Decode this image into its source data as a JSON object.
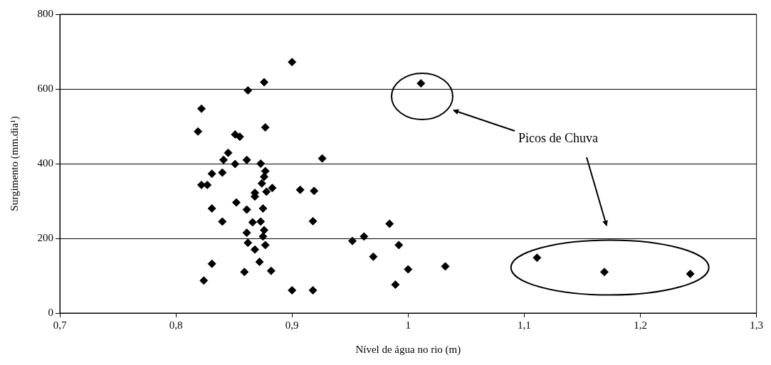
{
  "chart_data": {
    "type": "scatter",
    "xlabel": "Nível de água no rio (m)",
    "ylabel": "Surgimento (mm.dia¹)",
    "annotations": [
      "Picos de Chuva"
    ],
    "x": [
      0.9,
      0.876,
      0.862,
      1.011,
      0.822,
      0.819,
      0.877,
      0.851,
      0.855,
      0.926,
      0.845,
      0.841,
      0.861,
      0.851,
      0.873,
      0.877,
      0.876,
      0.874,
      0.822,
      0.827,
      0.831,
      0.84,
      0.883,
      0.878,
      0.868,
      0.868,
      0.907,
      0.919,
      0.831,
      0.852,
      0.861,
      0.875,
      0.918,
      0.84,
      0.866,
      0.873,
      0.876,
      0.861,
      0.875,
      0.862,
      0.877,
      0.868,
      0.872,
      0.831,
      0.859,
      0.882,
      0.824,
      0.9,
      0.918,
      0.952,
      0.962,
      0.984,
      0.97,
      0.992,
      1.0,
      1.032,
      0.989,
      1.111,
      1.169,
      1.243
    ],
    "series": [
      {
        "color": "#000000",
        "values": [
          672,
          618,
          596,
          615,
          547,
          486,
          497,
          478,
          472,
          414,
          429,
          410,
          410,
          399,
          400,
          380,
          365,
          347,
          343,
          343,
          373,
          376,
          335,
          325,
          322,
          312,
          330,
          327,
          280,
          296,
          277,
          280,
          246,
          245,
          243,
          245,
          222,
          215,
          205,
          188,
          182,
          170,
          137,
          132,
          110,
          113,
          87,
          61,
          61,
          193,
          205,
          239,
          151,
          182,
          117,
          125,
          76,
          148,
          110,
          105
        ]
      }
    ],
    "xlim": [
      0.7,
      1.3
    ],
    "xticks": [
      {
        "value": 0.7,
        "label": "0,7"
      },
      {
        "value": 0.8,
        "label": "0,8"
      },
      {
        "value": 0.9,
        "label": "0,9"
      },
      1,
      {
        "value": 1.1,
        "label": "1,1"
      },
      {
        "value": 1.2,
        "label": "1,2"
      },
      {
        "value": 1.3,
        "label": "1,3"
      }
    ],
    "ylim": [
      0,
      800
    ],
    "yticks": [
      0,
      200,
      400,
      600,
      800
    ],
    "grid": "y",
    "marker": "diamond",
    "legend": false
  }
}
